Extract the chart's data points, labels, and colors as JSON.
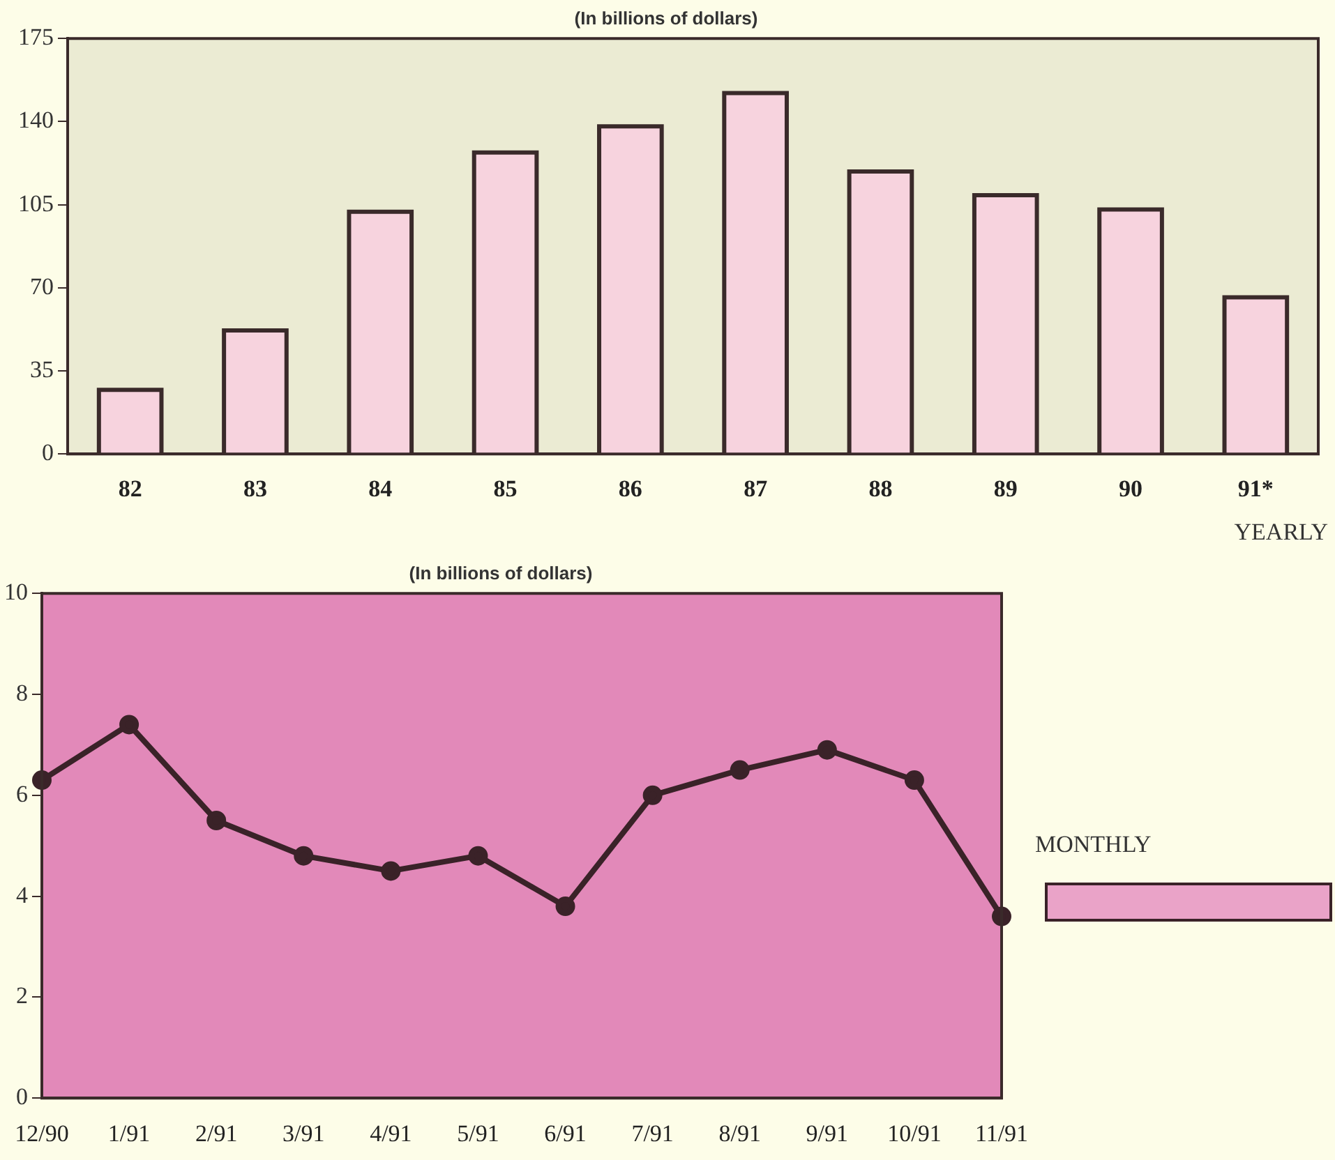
{
  "chart_data": [
    {
      "type": "bar",
      "title": "(In billions of dollars)",
      "xlabel": "YEARLY",
      "categories": [
        "82",
        "83",
        "84",
        "85",
        "86",
        "87",
        "88",
        "89",
        "90",
        "91*"
      ],
      "values": [
        27,
        52,
        102,
        127,
        138,
        152,
        119,
        109,
        103,
        66
      ],
      "color": "#f7d3de",
      "ylim": [
        0,
        175
      ],
      "yticks": [
        0,
        35,
        70,
        105,
        140,
        175
      ],
      "grid": false,
      "legend": false
    },
    {
      "type": "line",
      "title": "(In billions of dollars)",
      "annotations": [
        "MONTHLY"
      ],
      "categories": [
        "12/90",
        "1/91",
        "2/91",
        "3/91",
        "4/91",
        "5/91",
        "6/91",
        "7/91",
        "8/91",
        "9/91",
        "10/91",
        "11/91"
      ],
      "series": [
        {
          "color": "#3a2228",
          "values": [
            6.3,
            7.4,
            5.5,
            4.8,
            4.5,
            4.8,
            3.8,
            6.0,
            6.5,
            6.9,
            6.3,
            3.6
          ]
        }
      ],
      "marker": "circle",
      "ylim": [
        0,
        10
      ],
      "yticks": [
        0,
        2,
        4,
        6,
        8,
        10
      ],
      "grid": false,
      "legend": false
    }
  ]
}
